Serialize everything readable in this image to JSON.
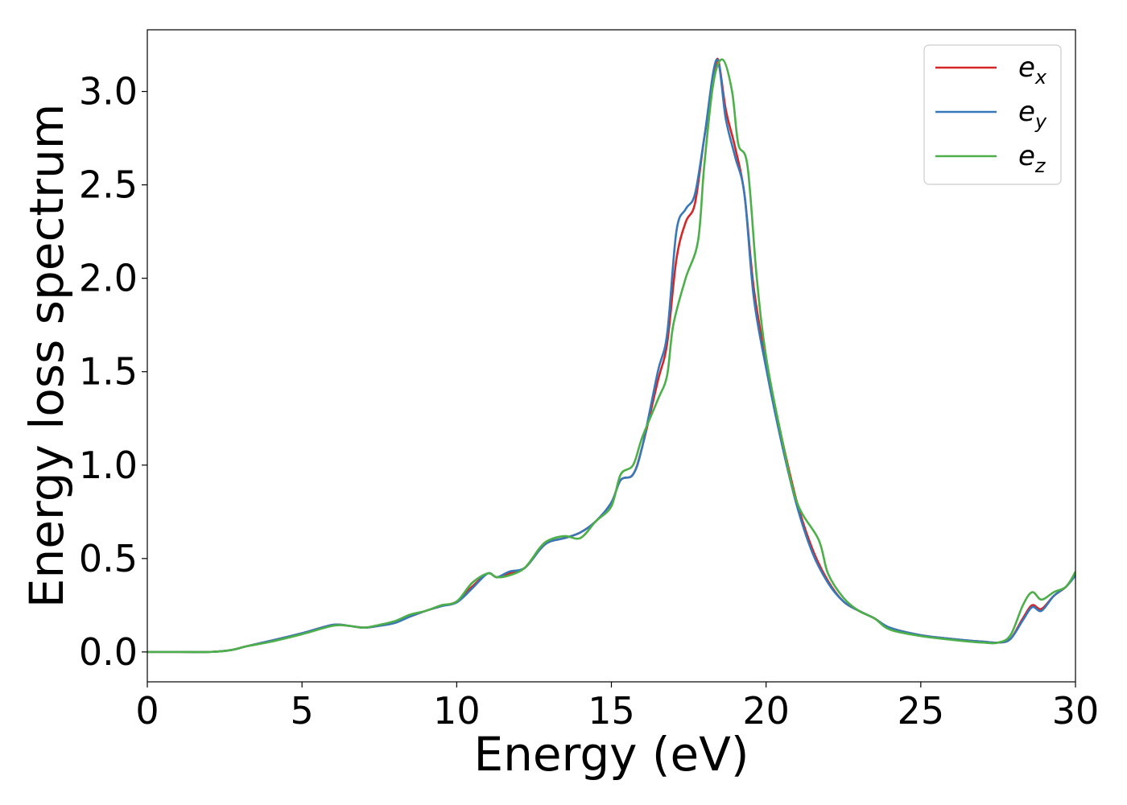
{
  "chart_data": {
    "type": "line",
    "title": "",
    "xlabel": "Energy (eV)",
    "ylabel": "Energy loss spectrum",
    "xlim": [
      0,
      30
    ],
    "ylim": [
      -0.16,
      3.33
    ],
    "xticks": [
      0,
      5,
      10,
      15,
      20,
      25,
      30
    ],
    "yticks": [
      0.0,
      0.5,
      1.0,
      1.5,
      2.0,
      2.5,
      3.0
    ],
    "xtick_labels": [
      "0",
      "5",
      "10",
      "15",
      "20",
      "25",
      "30"
    ],
    "ytick_labels": [
      "0.0",
      "0.5",
      "1.0",
      "1.5",
      "2.0",
      "2.5",
      "3.0"
    ],
    "grid": false,
    "legend": "top-right",
    "series": [
      {
        "name": "e_x",
        "legend_base": "e",
        "legend_sub": "x",
        "color": "#d62728",
        "x": [
          0,
          1,
          2,
          2.7,
          3.2,
          4.0,
          5.0,
          6.0,
          6.5,
          7.0,
          7.5,
          8.0,
          8.5,
          9.0,
          9.5,
          10.0,
          10.5,
          11.0,
          11.3,
          11.7,
          12.2,
          12.7,
          13.0,
          13.5,
          14.0,
          14.5,
          15.0,
          15.3,
          15.7,
          16.0,
          16.5,
          16.8,
          17.1,
          17.4,
          17.7,
          18.0,
          18.3,
          18.45,
          18.7,
          19.0,
          19.3,
          19.6,
          20.0,
          20.5,
          21.0,
          21.5,
          22.0,
          22.5,
          23.0,
          23.5,
          24.0,
          25.0,
          26.0,
          27.0,
          27.5,
          27.9,
          28.3,
          28.6,
          28.9,
          29.3,
          29.7,
          30.0
        ],
        "y": [
          0.0,
          0.0,
          0.0,
          0.01,
          0.03,
          0.06,
          0.1,
          0.145,
          0.14,
          0.13,
          0.14,
          0.16,
          0.19,
          0.22,
          0.245,
          0.27,
          0.35,
          0.42,
          0.4,
          0.42,
          0.45,
          0.55,
          0.59,
          0.61,
          0.64,
          0.7,
          0.8,
          0.92,
          0.95,
          1.1,
          1.45,
          1.65,
          2.1,
          2.3,
          2.4,
          2.75,
          3.05,
          3.17,
          2.9,
          2.7,
          2.45,
          1.95,
          1.55,
          1.15,
          0.8,
          0.55,
          0.38,
          0.27,
          0.22,
          0.18,
          0.13,
          0.09,
          0.07,
          0.055,
          0.05,
          0.07,
          0.18,
          0.25,
          0.23,
          0.3,
          0.35,
          0.42
        ]
      },
      {
        "name": "e_y",
        "legend_base": "e",
        "legend_sub": "y",
        "color": "#3778b8",
        "x": [
          0,
          1,
          2,
          2.7,
          3.2,
          4.0,
          5.0,
          6.0,
          6.5,
          7.0,
          7.5,
          8.0,
          8.5,
          9.0,
          9.5,
          10.0,
          10.5,
          11.0,
          11.3,
          11.7,
          12.2,
          12.7,
          13.0,
          13.5,
          14.0,
          14.5,
          15.0,
          15.3,
          15.7,
          16.0,
          16.5,
          16.8,
          17.1,
          17.4,
          17.7,
          18.0,
          18.4,
          18.7,
          19.0,
          19.3,
          19.6,
          20.0,
          20.5,
          21.0,
          21.5,
          22.0,
          22.5,
          23.0,
          23.5,
          24.0,
          25.0,
          26.0,
          27.0,
          27.5,
          27.9,
          28.3,
          28.6,
          28.9,
          29.3,
          29.7,
          30.0
        ],
        "y": [
          0.0,
          0.0,
          0.0,
          0.01,
          0.03,
          0.06,
          0.1,
          0.145,
          0.14,
          0.13,
          0.14,
          0.155,
          0.19,
          0.22,
          0.245,
          0.265,
          0.34,
          0.42,
          0.4,
          0.43,
          0.45,
          0.55,
          0.59,
          0.61,
          0.64,
          0.7,
          0.8,
          0.92,
          0.95,
          1.1,
          1.5,
          1.7,
          2.25,
          2.37,
          2.45,
          2.75,
          3.17,
          2.85,
          2.65,
          2.45,
          1.9,
          1.52,
          1.12,
          0.78,
          0.53,
          0.37,
          0.27,
          0.22,
          0.18,
          0.13,
          0.09,
          0.07,
          0.055,
          0.05,
          0.07,
          0.17,
          0.24,
          0.22,
          0.3,
          0.35,
          0.41
        ]
      },
      {
        "name": "e_z",
        "legend_base": "e",
        "legend_sub": "z",
        "color": "#4daf4a",
        "x": [
          0,
          1,
          2,
          2.7,
          3.2,
          4.0,
          5.0,
          6.0,
          6.5,
          7.0,
          7.5,
          8.0,
          8.5,
          9.0,
          9.5,
          10.0,
          10.5,
          11.0,
          11.3,
          11.7,
          12.2,
          12.7,
          13.0,
          13.5,
          14.0,
          14.5,
          15.0,
          15.3,
          15.7,
          16.0,
          16.5,
          16.8,
          17.0,
          17.4,
          17.8,
          18.0,
          18.3,
          18.6,
          18.9,
          19.1,
          19.4,
          19.7,
          20.0,
          20.5,
          21.0,
          21.7,
          22.0,
          22.5,
          23.0,
          23.5,
          24.0,
          25.0,
          26.0,
          27.0,
          27.5,
          27.9,
          28.3,
          28.6,
          28.9,
          29.3,
          29.7,
          30.0
        ],
        "y": [
          0.0,
          0.0,
          0.0,
          0.01,
          0.03,
          0.055,
          0.095,
          0.14,
          0.14,
          0.13,
          0.145,
          0.165,
          0.2,
          0.22,
          0.25,
          0.27,
          0.37,
          0.42,
          0.4,
          0.41,
          0.45,
          0.56,
          0.6,
          0.62,
          0.61,
          0.7,
          0.78,
          0.95,
          1.0,
          1.15,
          1.35,
          1.48,
          1.75,
          2.0,
          2.2,
          2.6,
          3.05,
          3.17,
          3.0,
          2.72,
          2.6,
          2.0,
          1.58,
          1.15,
          0.8,
          0.6,
          0.42,
          0.29,
          0.22,
          0.18,
          0.12,
          0.085,
          0.065,
          0.05,
          0.05,
          0.09,
          0.25,
          0.32,
          0.28,
          0.32,
          0.35,
          0.43
        ]
      }
    ]
  }
}
